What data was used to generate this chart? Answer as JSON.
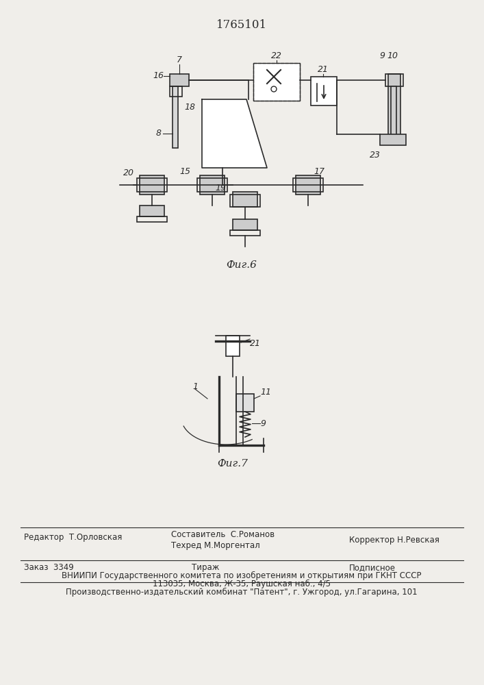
{
  "title": "1765101",
  "fig6_label": "Фиг.6",
  "fig7_label": "Фиг.7",
  "bg_color": "#f0eeea",
  "line_color": "#2a2a2a",
  "footer_lines": [
    [
      "Редактор  Т.Орловская",
      "Составитель  С.Романов\nТехред М.Моргентал",
      "Корректор Н.Ревская"
    ],
    [
      "Заказ  3349",
      "Тираж",
      "Подписное"
    ],
    [
      "ВНИИПИ Государственного комитета по изобретениям и открытиям при ГКНТ СССР\n113035, Москва, Ж-35, Раушская наб., 4/5"
    ],
    [
      "Производственно-издательский комбинат \"Патент\", г. Ужгород, ул.Гагарина, 101"
    ]
  ]
}
